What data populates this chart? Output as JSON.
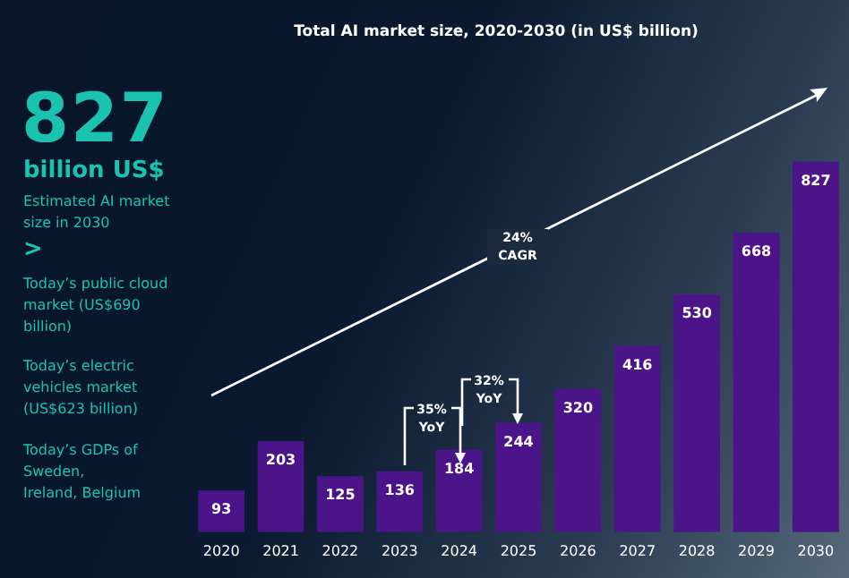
{
  "chart_data": {
    "type": "bar",
    "title": "Total AI market size, 2020-2030 (in US$ billion)",
    "categories": [
      "2020",
      "2021",
      "2022",
      "2023",
      "2024",
      "2025",
      "2026",
      "2027",
      "2028",
      "2029",
      "2030"
    ],
    "values": [
      93,
      203,
      125,
      136,
      184,
      244,
      320,
      416,
      530,
      668,
      827
    ],
    "color": "#4b1589",
    "tick_labels": "x",
    "data_labels": true,
    "grid": false,
    "legend": false,
    "annotations": [
      "827",
      "billion US$",
      "Estimated AI market size in 2030",
      ">",
      "Today’s public cloud market (US$690 billion)",
      "Today’s electric vehicles market (US$623 billion)",
      "Today’s GDPs of Sweden, Ireland, Belgium",
      "24% CAGR",
      "35% YoY",
      "32% YoY"
    ]
  }
}
